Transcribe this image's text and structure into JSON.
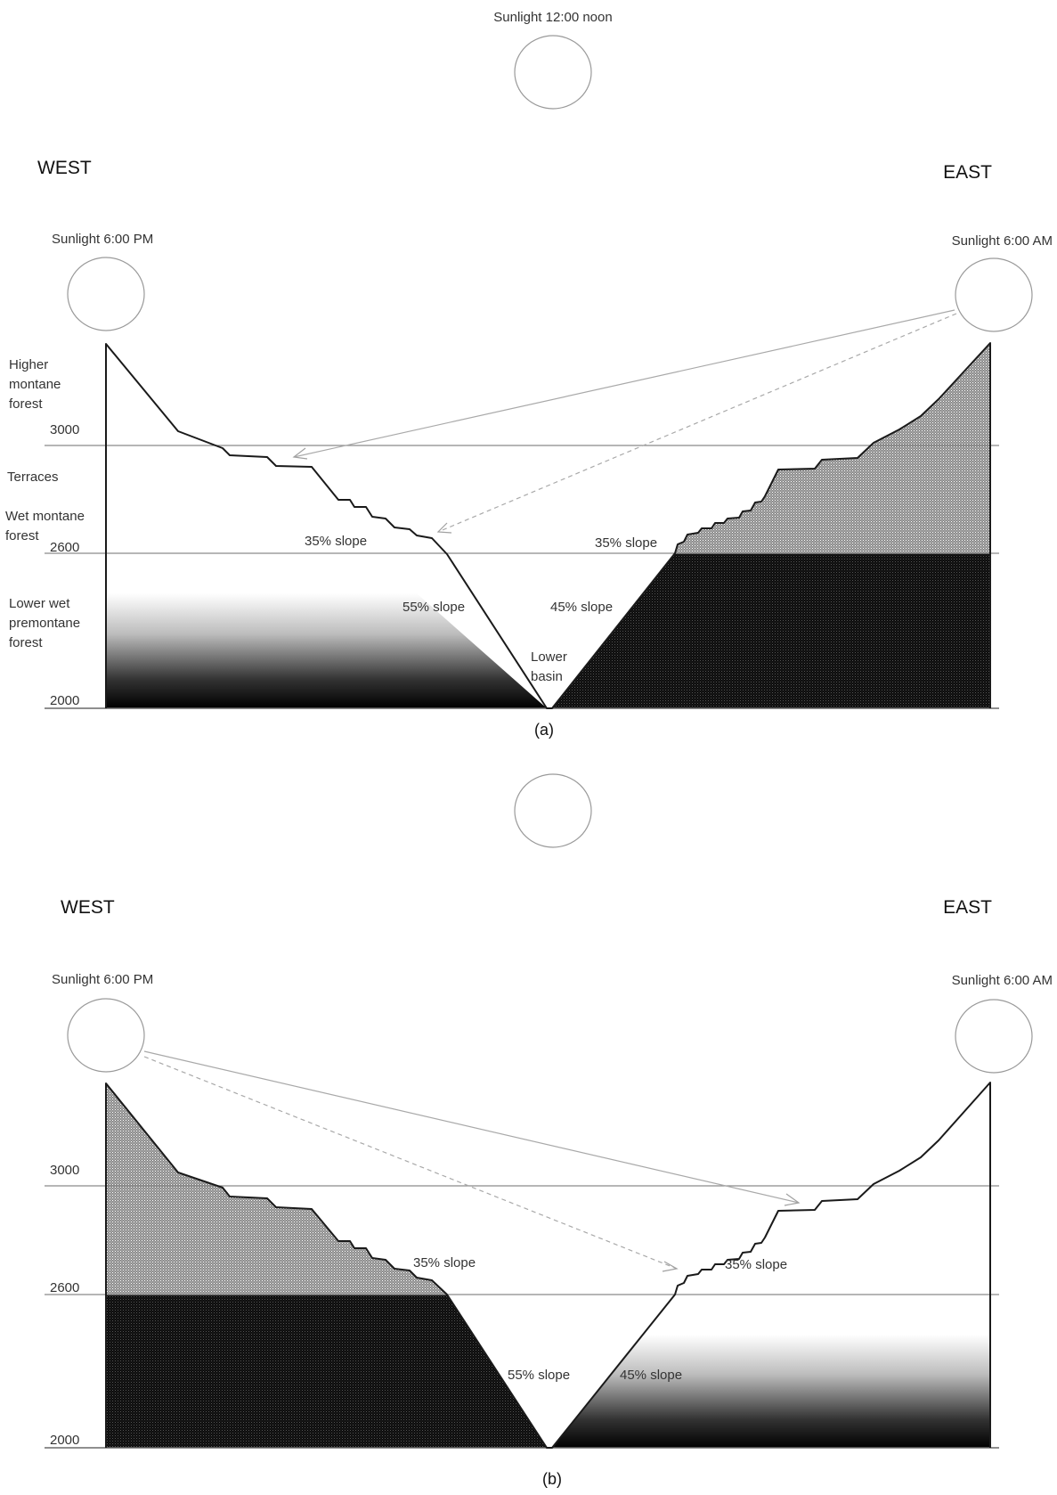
{
  "noon_sun_label": "Sunlight 12:00 noon",
  "panel_a": {
    "west_label": "WEST",
    "east_label": "EAST",
    "sun_pm_label": "Sunlight 6:00 PM",
    "sun_am_label": "Sunlight 6:00 AM",
    "elevations": [
      "3000",
      "2600",
      "2000"
    ],
    "zones": {
      "higher": [
        "Higher",
        "montane",
        "forest"
      ],
      "terraces": "Terraces",
      "wet": [
        "Wet montane",
        "forest"
      ],
      "lower": [
        "Lower wet",
        "premontane",
        "forest"
      ]
    },
    "slope_labels": {
      "west_upper": "35% slope",
      "east_upper": "35% slope",
      "west_lower": "55% slope",
      "east_lower": "45% slope"
    },
    "basin_label": [
      "Lower",
      "basin"
    ],
    "caption": "(a)"
  },
  "panel_b": {
    "west_label": "WEST",
    "east_label": "EAST",
    "sun_pm_label": "Sunlight 6:00 PM",
    "sun_am_label": "Sunlight 6:00 AM",
    "elevations": [
      "3000",
      "2600",
      "2000"
    ],
    "slope_labels": {
      "west_upper": "35% slope",
      "east_upper": "35% slope",
      "west_lower": "55% slope",
      "east_lower": "45% slope"
    },
    "caption": "(b)"
  }
}
